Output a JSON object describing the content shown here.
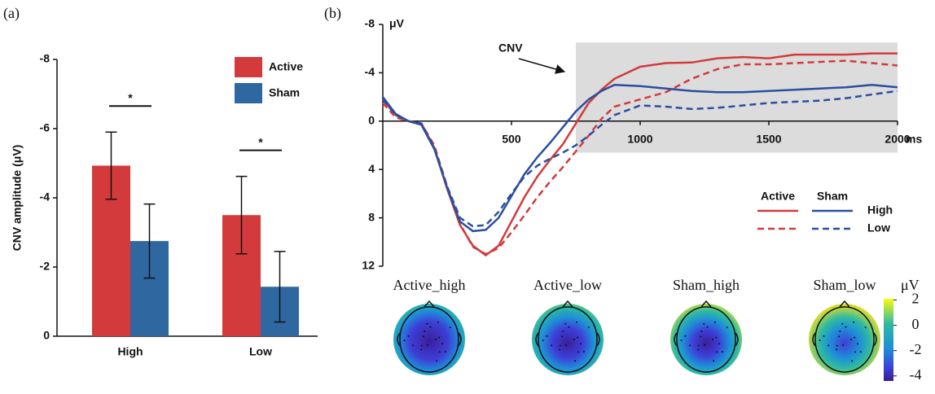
{
  "chart_data": [
    {
      "type": "bar",
      "panel_label": "(a)",
      "y_label": "CNV amplitude (μV)",
      "categories": [
        "High",
        "Low"
      ],
      "series": [
        {
          "name": "Active",
          "color": "#d33a3c",
          "values": [
            -4.93,
            -3.5
          ],
          "errors": [
            0.97,
            1.12
          ]
        },
        {
          "name": "Sham",
          "color": "#2f68a0",
          "values": [
            -2.75,
            -1.43
          ],
          "errors": [
            1.07,
            1.02
          ]
        }
      ],
      "ylim": [
        0,
        -8
      ],
      "yticks": [
        -8,
        -6,
        -4,
        -2,
        0
      ],
      "annotations": [
        {
          "text": "*",
          "category": 0
        },
        {
          "text": "*",
          "category": 1
        }
      ]
    },
    {
      "type": "line",
      "panel_label": "(b)",
      "y_unit": "μV",
      "x_unit": "ms",
      "x": [
        0,
        50,
        100,
        150,
        200,
        250,
        300,
        350,
        400,
        450,
        500,
        550,
        600,
        650,
        700,
        750,
        800,
        850,
        900,
        1000,
        1100,
        1200,
        1300,
        1400,
        1500,
        1600,
        1700,
        1800,
        1900,
        2000
      ],
      "series": [
        {
          "color": "#d33a3c",
          "dash": "solid",
          "values": [
            -1.8,
            -0.5,
            0,
            0.2,
            2.2,
            5.6,
            8.6,
            10.3,
            11.1,
            10.3,
            8.3,
            6.3,
            4.6,
            3.2,
            1.9,
            0.2,
            -1.5,
            -2.6,
            -3.5,
            -4.5,
            -4.8,
            -4.85,
            -5.2,
            -5.3,
            -5.2,
            -5.5,
            -5.5,
            -5.5,
            -5.6,
            -5.6
          ]
        },
        {
          "color": "#d33a3c",
          "dash": "dashed",
          "values": [
            -1.5,
            -0.3,
            0,
            0.2,
            2.0,
            5.4,
            8.5,
            10.4,
            11.0,
            10.5,
            9.2,
            7.8,
            6.3,
            5.0,
            3.8,
            2.5,
            1.2,
            -0.2,
            -1.2,
            -1.8,
            -2.4,
            -3.5,
            -4.3,
            -4.7,
            -4.7,
            -4.8,
            -4.9,
            -5.0,
            -4.8,
            -4.6
          ]
        },
        {
          "color": "#2a4fa0",
          "dash": "solid",
          "values": [
            -2.0,
            -0.6,
            0,
            0.3,
            2.3,
            5.5,
            8.3,
            9.1,
            9.0,
            8.0,
            6.2,
            4.4,
            3.0,
            1.8,
            0.5,
            -0.8,
            -1.8,
            -2.5,
            -3.0,
            -2.9,
            -2.7,
            -2.5,
            -2.4,
            -2.4,
            -2.5,
            -2.6,
            -2.7,
            -2.8,
            -3.0,
            -2.8
          ]
        },
        {
          "color": "#2a4fa0",
          "dash": "dashed",
          "values": [
            -1.8,
            -0.5,
            0,
            0.2,
            2.2,
            5.4,
            8.0,
            8.7,
            8.6,
            7.5,
            6.0,
            4.6,
            3.7,
            3.1,
            2.6,
            2.0,
            1.2,
            0.3,
            -0.5,
            -1.3,
            -1.2,
            -1.0,
            -1.1,
            -1.3,
            -1.5,
            -1.6,
            -1.7,
            -1.9,
            -2.2,
            -2.5
          ]
        }
      ],
      "xlim": [
        0,
        2000
      ],
      "xticks": [
        500,
        1000,
        1500,
        2000
      ],
      "ylim": [
        12,
        -8
      ],
      "yticks": [
        -8,
        -4,
        0,
        4,
        8,
        12
      ],
      "shade": {
        "x": [
          750,
          2000
        ],
        "y": [
          2.6,
          -6.5
        ]
      },
      "annotation": "CNV",
      "legend": {
        "columns": [
          {
            "name": "Active",
            "color": "#d33a3c"
          },
          {
            "name": "Sham",
            "color": "#2a4fa0"
          }
        ],
        "rows": [
          {
            "name": "High",
            "dash": "solid"
          },
          {
            "name": "Low",
            "dash": "dashed"
          }
        ]
      }
    },
    {
      "type": "topomap",
      "titles": [
        "Active_high",
        "Active_low",
        "Sham_high",
        "Sham_low"
      ],
      "colorbar": {
        "label": "μV",
        "lim": [
          -4.4,
          2.1
        ],
        "ticks": [
          2,
          0,
          -2,
          -4
        ]
      }
    }
  ]
}
